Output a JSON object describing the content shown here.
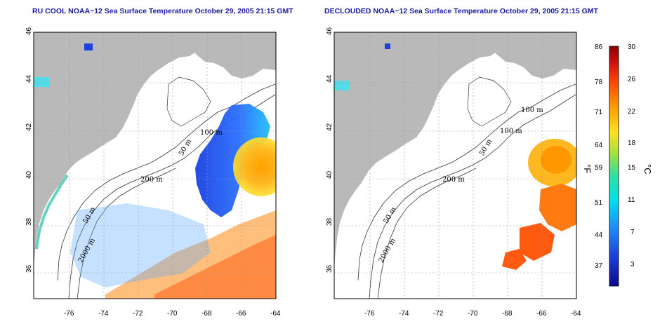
{
  "left_map": {
    "title": "RU COOL NOAA−12 Sea Surface Temperature October 29, 2005 21:15 GMT",
    "x_ticks": [
      "-76",
      "-74",
      "-72",
      "-70",
      "-68",
      "-66",
      "-64"
    ],
    "y_ticks": [
      "36",
      "38",
      "40",
      "42",
      "44",
      "46"
    ],
    "contour_labels": [
      "100 m",
      "50 m",
      "200 m",
      "50 m",
      "2000 m"
    ]
  },
  "right_map": {
    "title": "DECLOUDED NOAA−12 Sea Surface Temperature October 29, 2005 21:15 GMT",
    "x_ticks": [
      "-76",
      "-74",
      "-72",
      "-70",
      "-68",
      "-66",
      "-64"
    ],
    "y_ticks": [
      "36",
      "38",
      "40",
      "42",
      "44",
      "46"
    ],
    "contour_labels": [
      "100 m",
      "100 m",
      "50 m",
      "200 m",
      "50 m",
      "2000 m"
    ]
  },
  "colorbar": {
    "fahrenheit_unit": "°F",
    "celsius_unit": "°C",
    "fahrenheit_ticks": [
      "86",
      "78",
      "71",
      "64",
      "59",
      "51",
      "44",
      "37"
    ],
    "celsius_ticks": [
      "30",
      "26",
      "22",
      "18",
      "15",
      "11",
      "7",
      "3"
    ],
    "colors": [
      "#0a0a8c",
      "#1a3fd6",
      "#1e90ff",
      "#00e0e8",
      "#30e0a0",
      "#a0e040",
      "#ffe020",
      "#ffa000",
      "#ff5000",
      "#d01010",
      "#8c0000"
    ]
  },
  "colors": {
    "land": "#b9b9b9",
    "title": "#1a1aa6"
  }
}
